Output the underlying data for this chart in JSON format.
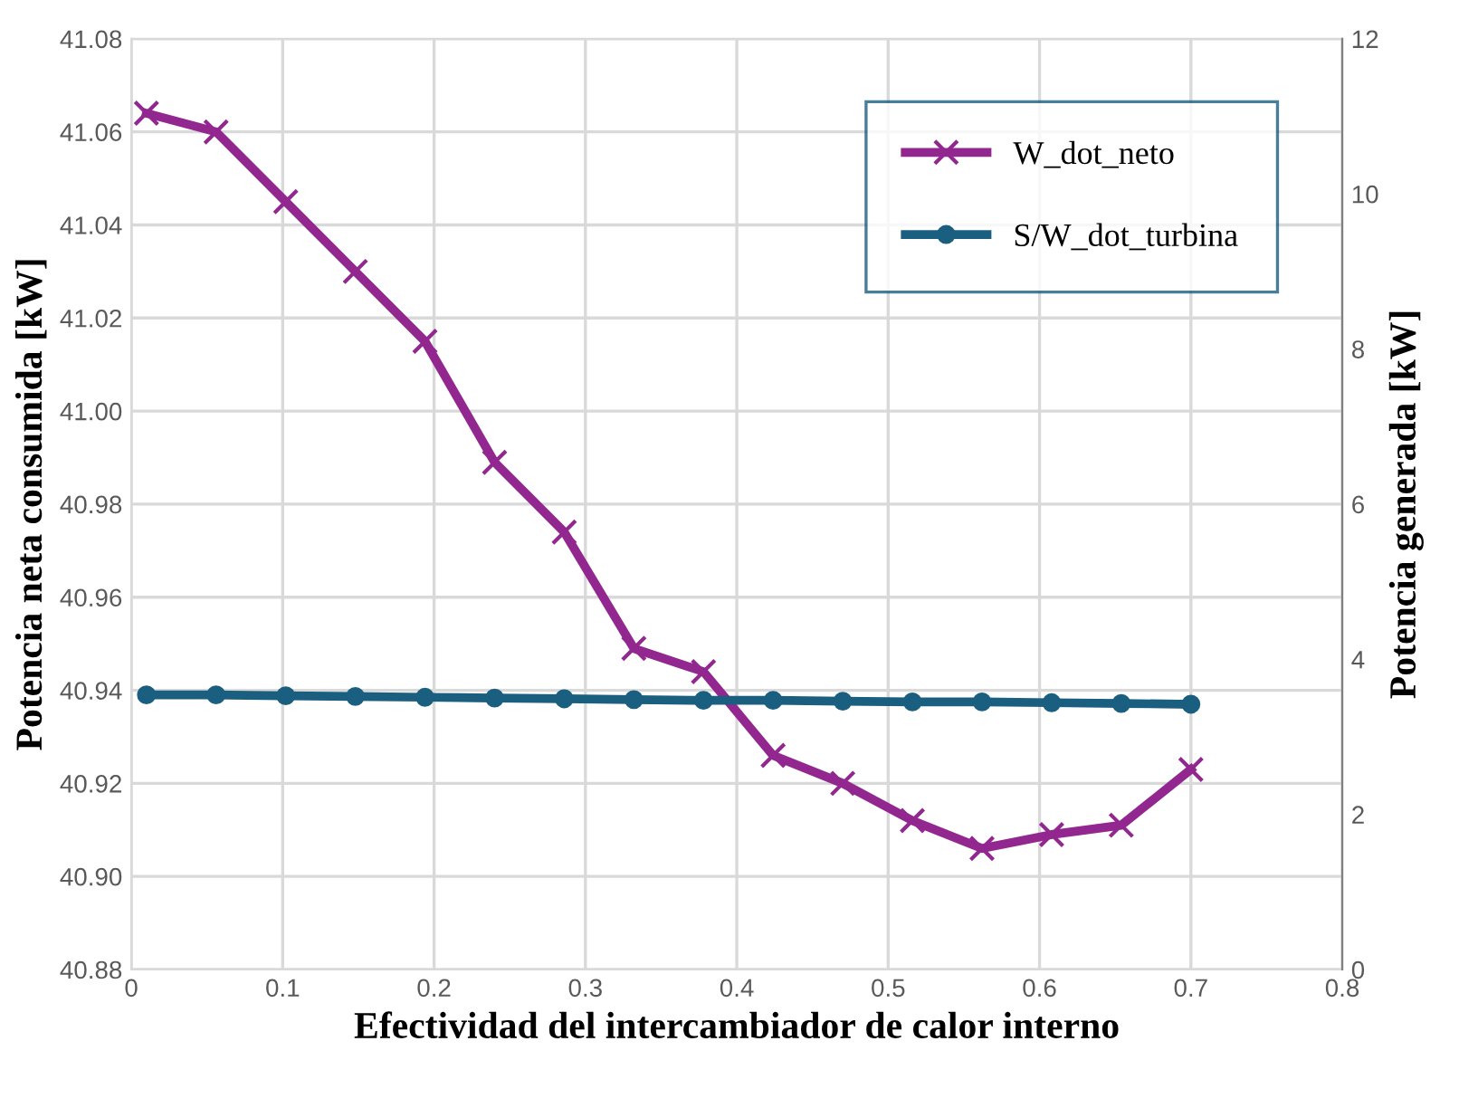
{
  "chart_data": {
    "type": "line",
    "xlabel": "Efectividad del intercambiador de calor interno",
    "ylabel": "Potencia neta consumida [kW]",
    "y2label": "Potencia generada [kW]",
    "x": [
      0.01,
      0.056,
      0.102,
      0.148,
      0.194,
      0.24,
      0.286,
      0.332,
      0.378,
      0.424,
      0.47,
      0.516,
      0.562,
      0.608,
      0.654,
      0.7
    ],
    "series": [
      {
        "name": "W_dot_neto",
        "color": "#92278f",
        "marker": "cross",
        "values": [
          41.064,
          41.06,
          41.045,
          41.03,
          41.015,
          40.989,
          40.974,
          40.949,
          40.944,
          40.926,
          40.92,
          40.912,
          40.906,
          40.909,
          40.911,
          40.923
        ]
      },
      {
        "name": "S/W_dot_turbina",
        "color": "#1a5e80",
        "marker": "circle",
        "axis": "y2",
        "values": [
          3.54,
          3.54,
          3.53,
          3.52,
          3.51,
          3.5,
          3.49,
          3.48,
          3.47,
          3.47,
          3.46,
          3.45,
          3.45,
          3.44,
          3.43,
          3.42
        ]
      }
    ],
    "xlim": [
      0,
      0.8
    ],
    "xticks": [
      0,
      0.1,
      0.2,
      0.3,
      0.4,
      0.5,
      0.6,
      0.7,
      0.8
    ],
    "ylim": [
      40.88,
      41.08
    ],
    "yticks": [
      {
        "value": 40.88,
        "label": "40.88"
      },
      {
        "value": 40.9,
        "label": "40.90"
      },
      {
        "value": 40.92,
        "label": "40.92"
      },
      {
        "value": 40.94,
        "label": "40.94"
      },
      {
        "value": 40.96,
        "label": "40.96"
      },
      {
        "value": 40.98,
        "label": "40.98"
      },
      {
        "value": 41.0,
        "label": "41.00"
      },
      {
        "value": 41.02,
        "label": "41.02"
      },
      {
        "value": 41.04,
        "label": "41.04"
      },
      {
        "value": 41.06,
        "label": "41.06"
      },
      {
        "value": 41.08,
        "label": "41.08"
      }
    ],
    "y2lim": [
      0,
      12
    ],
    "y2ticks": [
      0,
      2,
      4,
      6,
      8,
      10,
      12
    ],
    "grid": true,
    "legend": "top right",
    "line_style": "solid"
  }
}
